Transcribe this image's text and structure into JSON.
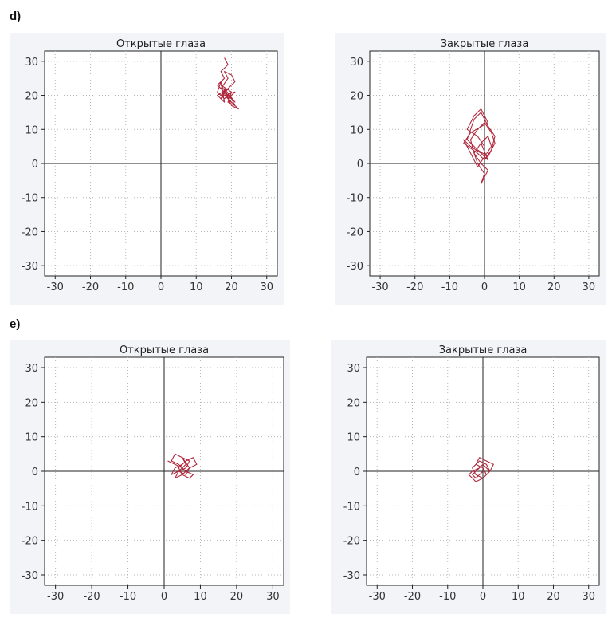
{
  "sections": {
    "d": "d)",
    "e": "e)"
  },
  "colors": {
    "trace": "#b0283c",
    "panel_bg": "#f2f4f7",
    "axis": "#222222",
    "grid": "#b5b5b5",
    "tick_text": "#333333"
  },
  "chart_data": [
    {
      "type": "line",
      "title": "Открытые глаза",
      "xlim": [
        -33,
        33
      ],
      "ylim": [
        -33,
        33
      ],
      "xticks": [
        -30,
        -20,
        -10,
        0,
        10,
        20,
        30
      ],
      "yticks": [
        30,
        20,
        10,
        0,
        -10,
        -20,
        -30
      ],
      "xtick_labels": [
        "-30",
        "-20",
        "-10",
        "0",
        "10",
        "20",
        "30"
      ],
      "ytick_labels": [
        "30",
        "20",
        "10",
        "0",
        "-10",
        "-20",
        "-30"
      ],
      "grid": true,
      "series": [
        {
          "x": [
            18,
            19,
            17,
            18,
            16,
            18,
            17,
            19,
            16,
            18,
            17,
            16,
            18,
            20,
            17,
            19,
            21,
            18,
            20,
            22,
            19,
            21,
            18,
            20,
            17,
            19,
            18,
            20,
            21,
            19,
            17,
            18,
            20,
            19,
            21,
            20,
            18
          ],
          "y": [
            31,
            29,
            27,
            25,
            23,
            21,
            19,
            22,
            20,
            18,
            24,
            21,
            19,
            21,
            23,
            20,
            18,
            22,
            17,
            16,
            19,
            21,
            20,
            18,
            22,
            25,
            27,
            26,
            24,
            22,
            20,
            19,
            21,
            18,
            17,
            19,
            20
          ]
        }
      ]
    },
    {
      "type": "line",
      "title": "Закрытые глаза",
      "xlim": [
        -33,
        33
      ],
      "ylim": [
        -33,
        33
      ],
      "xticks": [
        -30,
        -20,
        -10,
        0,
        10,
        20,
        30
      ],
      "yticks": [
        30,
        20,
        10,
        0,
        -10,
        -20,
        -30
      ],
      "xtick_labels": [
        "-30",
        "-20",
        "-10",
        "0",
        "10",
        "20",
        "30"
      ],
      "ytick_labels": [
        "30",
        "20",
        "10",
        "0",
        "-10",
        "-20",
        "-30"
      ],
      "grid": true,
      "series": [
        {
          "x": [
            0,
            -2,
            -5,
            -3,
            -1,
            1,
            -4,
            -6,
            -2,
            0,
            2,
            3,
            1,
            -1,
            -3,
            -5,
            -2,
            1,
            3,
            2,
            0,
            -2,
            -4,
            -3,
            -1,
            1,
            0,
            -1,
            0,
            -2,
            -3,
            -1,
            1,
            2,
            0,
            -2,
            -6,
            -4,
            -1,
            1,
            -1
          ],
          "y": [
            5,
            8,
            10,
            14,
            16,
            12,
            9,
            6,
            3,
            1,
            4,
            8,
            11,
            15,
            13,
            7,
            4,
            2,
            6,
            9,
            12,
            10,
            7,
            3,
            0,
            -2,
            -4,
            -6,
            -3,
            0,
            3,
            6,
            8,
            5,
            2,
            -1,
            7,
            5,
            3,
            1,
            6
          ]
        }
      ]
    },
    {
      "type": "line",
      "title": "Открытые глаза",
      "xlim": [
        -33,
        33
      ],
      "ylim": [
        -33,
        33
      ],
      "xticks": [
        -30,
        -20,
        -10,
        0,
        10,
        20,
        30
      ],
      "yticks": [
        30,
        20,
        10,
        0,
        -10,
        -20,
        -30
      ],
      "xtick_labels": [
        "-30",
        "-20",
        "-10",
        "0",
        "10",
        "20",
        "30"
      ],
      "ytick_labels": [
        "30",
        "20",
        "10",
        "0",
        "-10",
        "-20",
        "-30"
      ],
      "grid": true,
      "series": [
        {
          "x": [
            1,
            3,
            5,
            4,
            6,
            7,
            5,
            3,
            2,
            4,
            6,
            8,
            7,
            5,
            4,
            6,
            8,
            9,
            7,
            5,
            3,
            4,
            6,
            5,
            7,
            6,
            4,
            2,
            3,
            5
          ],
          "y": [
            3,
            2,
            1,
            0,
            -1,
            1,
            4,
            5,
            3,
            2,
            0,
            -1,
            -2,
            -1,
            1,
            3,
            4,
            2,
            1,
            -1,
            -2,
            0,
            2,
            4,
            3,
            1,
            0,
            -1,
            1,
            2
          ]
        }
      ]
    },
    {
      "type": "line",
      "title": "Закрытые глаза",
      "xlim": [
        -33,
        33
      ],
      "ylim": [
        -33,
        33
      ],
      "xticks": [
        -30,
        -20,
        -10,
        0,
        10,
        20,
        30
      ],
      "yticks": [
        30,
        20,
        10,
        0,
        -10,
        -20,
        -30
      ],
      "xtick_labels": [
        "-30",
        "-20",
        "-10",
        "0",
        "10",
        "20",
        "30"
      ],
      "ytick_labels": [
        "30",
        "20",
        "10",
        "0",
        "-10",
        "-20",
        "-30"
      ],
      "grid": true,
      "series": [
        {
          "x": [
            -1,
            -3,
            -4,
            -2,
            0,
            2,
            1,
            -1,
            -3,
            -2,
            0,
            2,
            3,
            1,
            -1,
            -2,
            0,
            1,
            2,
            0,
            -1,
            -3,
            -2,
            0
          ],
          "y": [
            1,
            0,
            -1,
            -3,
            -2,
            0,
            2,
            3,
            1,
            -1,
            -2,
            0,
            2,
            3,
            4,
            2,
            1,
            -1,
            0,
            2,
            1,
            -1,
            -2,
            0
          ]
        }
      ]
    }
  ]
}
